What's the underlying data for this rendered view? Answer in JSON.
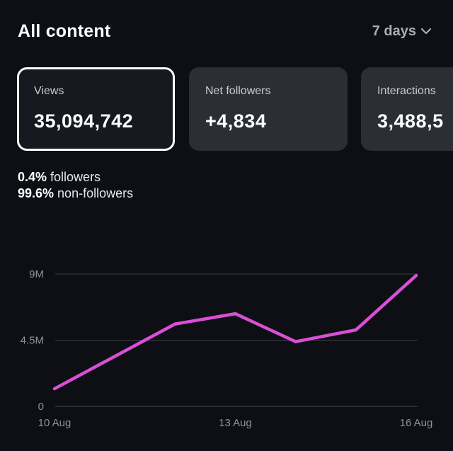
{
  "header": {
    "title": "All content",
    "range_label": "7 days"
  },
  "metrics": [
    {
      "label": "Views",
      "value": "35,094,742",
      "selected": true
    },
    {
      "label": "Net followers",
      "value": "+4,834",
      "selected": false
    },
    {
      "label": "Interactions",
      "value": "3,488,5",
      "selected": false
    }
  ],
  "breakdown": {
    "followers_pct": "0.4%",
    "followers_label": " followers",
    "non_followers_pct": "99.6%",
    "non_followers_label": " non-followers"
  },
  "colors": {
    "background": "#0d0f14",
    "card": "#2b2e35",
    "line": "#d94fd6",
    "grid": "#3a3d44"
  },
  "chart_data": {
    "type": "line",
    "x": [
      "10 Aug",
      "11 Aug",
      "12 Aug",
      "13 Aug",
      "14 Aug",
      "15 Aug",
      "16 Aug"
    ],
    "xticks": [
      "10 Aug",
      "13 Aug",
      "16 Aug"
    ],
    "yticks": [
      "0",
      "4.5M",
      "9M"
    ],
    "ylim": [
      0,
      9000000
    ],
    "series": [
      {
        "values": [
          1200000,
          3400000,
          5600000,
          6300000,
          4400000,
          5200000,
          8900000
        ]
      }
    ],
    "grid": true
  }
}
